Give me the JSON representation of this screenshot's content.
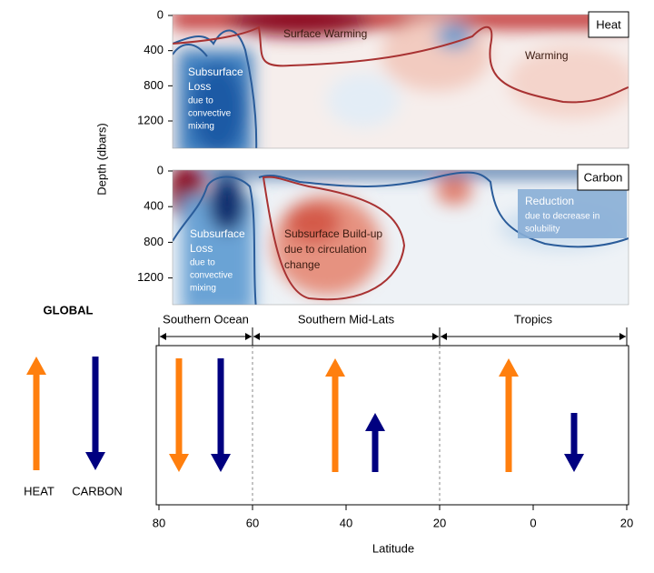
{
  "chart_data": [
    {
      "type": "heatmap",
      "panel_label": "Heat",
      "ylabel": "Depth (dbars)",
      "ylim": [
        1500,
        0
      ],
      "yticks": [
        0,
        400,
        800,
        1200
      ],
      "annotations": {
        "surface": [
          "Surface Warming"
        ],
        "warming": [
          "Warming"
        ],
        "loss": [
          "Subsurface",
          "Loss"
        ],
        "loss_note": [
          "due to",
          "convective",
          "mixing"
        ]
      }
    },
    {
      "type": "heatmap",
      "panel_label": "Carbon",
      "ylim": [
        1500,
        0
      ],
      "yticks": [
        0,
        400,
        800,
        1200
      ],
      "annotations": {
        "loss": [
          "Subsurface",
          "Loss"
        ],
        "loss_note": [
          "due to",
          "convective",
          "mixing"
        ],
        "buildup": [
          "Subsurface Build-up",
          "due to circulation",
          "change"
        ],
        "reduction": [
          "Reduction"
        ],
        "reduction_note": [
          "due to decrease in",
          "solubility"
        ]
      }
    },
    {
      "type": "arrows",
      "title": "GLOBAL",
      "legend": [
        "HEAT",
        "CARBON"
      ],
      "heat_color": "#ff7f0e",
      "carbon_color": "#000080",
      "regions": [
        "Southern Ocean",
        "Southern Mid-Lats",
        "Tropics"
      ],
      "region_edges": [
        80,
        60,
        20,
        -20
      ],
      "xlabel": "Latitude",
      "xlim": [
        80,
        -20
      ],
      "xticks": [
        80,
        60,
        40,
        20,
        0,
        {
          "value": -20,
          "label": "20"
        }
      ]
    }
  ]
}
